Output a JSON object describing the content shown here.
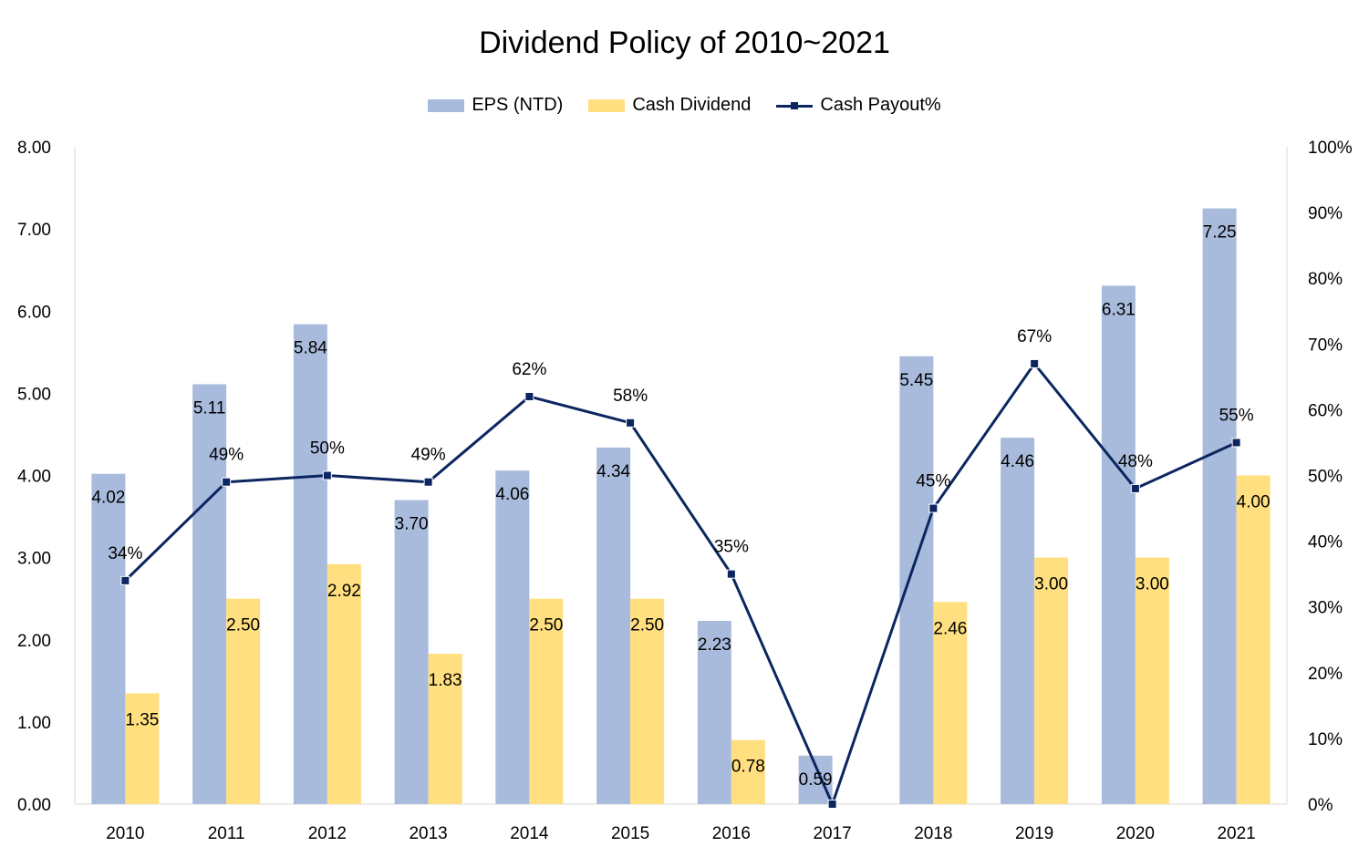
{
  "chart_data": {
    "type": "bar",
    "title": "Dividend Policy of 2010~2021",
    "categories": [
      "2010",
      "2011",
      "2012",
      "2013",
      "2014",
      "2015",
      "2016",
      "2017",
      "2018",
      "2019",
      "2020",
      "2021"
    ],
    "series": [
      {
        "name": "EPS (NTD)",
        "type": "bar",
        "axis": "left",
        "color": "#a9bbdc",
        "values": [
          4.02,
          5.11,
          5.84,
          3.7,
          4.06,
          4.34,
          2.23,
          0.59,
          5.45,
          4.46,
          6.31,
          7.25
        ],
        "labels": [
          "4.02",
          "5.11",
          "5.84",
          "3.70",
          "4.06",
          "4.34",
          "2.23",
          "0.59",
          "5.45",
          "4.46",
          "6.31",
          "7.25"
        ]
      },
      {
        "name": "Cash Dividend",
        "type": "bar",
        "axis": "left",
        "color": "#ffdf7f",
        "values": [
          1.35,
          2.5,
          2.92,
          1.83,
          2.5,
          2.5,
          0.78,
          null,
          2.46,
          3.0,
          3.0,
          4.0
        ],
        "labels": [
          "1.35",
          "2.50",
          "2.92",
          "1.83",
          "2.50",
          "2.50",
          "0.78",
          "",
          "2.46",
          "3.00",
          "3.00",
          "4.00"
        ]
      },
      {
        "name": "Cash Payout%",
        "type": "line",
        "axis": "right",
        "color": "#0b2660",
        "values": [
          34,
          49,
          50,
          49,
          62,
          58,
          35,
          0,
          45,
          67,
          48,
          55
        ],
        "labels": [
          "34%",
          "49%",
          "50%",
          "49%",
          "62%",
          "58%",
          "35%",
          "",
          "45%",
          "67%",
          "48%",
          "55%"
        ]
      }
    ],
    "y_left": {
      "min": 0,
      "max": 8,
      "ticks": [
        "0.00",
        "1.00",
        "2.00",
        "3.00",
        "4.00",
        "5.00",
        "6.00",
        "7.00",
        "8.00"
      ]
    },
    "y_right": {
      "min": 0,
      "max": 100,
      "ticks": [
        "0%",
        "10%",
        "20%",
        "30%",
        "40%",
        "50%",
        "60%",
        "70%",
        "80%",
        "90%",
        "100%"
      ]
    },
    "grid": false,
    "legend_position": "top"
  }
}
